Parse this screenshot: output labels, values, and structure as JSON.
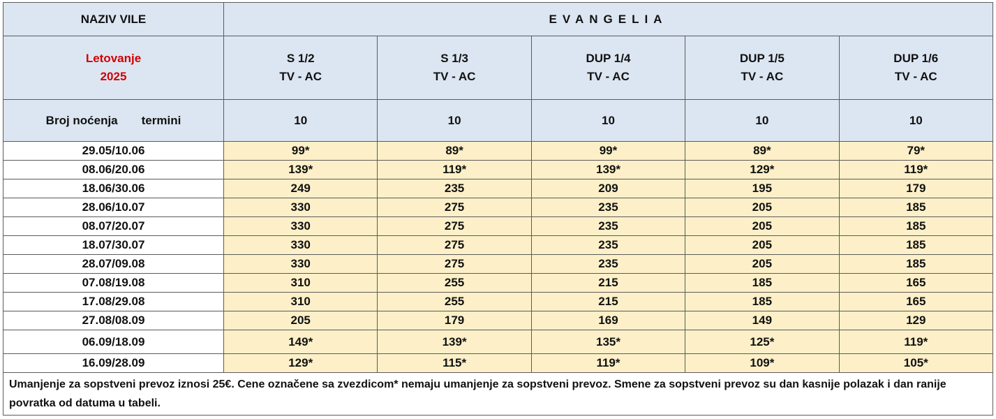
{
  "table": {
    "header": {
      "label": "NAZIV VILE",
      "villa": "EVANGELIA"
    },
    "season": [
      "Letovanje",
      "2025"
    ],
    "rooms": [
      {
        "name": "S 1/2",
        "features": "TV - AC"
      },
      {
        "name": "S 1/3",
        "features": "TV - AC"
      },
      {
        "name": "DUP 1/4",
        "features": "TV - AC"
      },
      {
        "name": "DUP 1/5",
        "features": "TV - AC"
      },
      {
        "name": "DUP 1/6",
        "features": "TV - AC"
      }
    ],
    "nights_label": "Broj noćenja",
    "dates_label": "termini",
    "nights": [
      "10",
      "10",
      "10",
      "10",
      "10"
    ],
    "rows": [
      {
        "date": "29.05/10.06",
        "prices": [
          "99*",
          "89*",
          "99*",
          "89*",
          "79*"
        ]
      },
      {
        "date": "08.06/20.06",
        "prices": [
          "139*",
          "119*",
          "139*",
          "129*",
          "119*"
        ]
      },
      {
        "date": "18.06/30.06",
        "prices": [
          "249",
          "235",
          "209",
          "195",
          "179"
        ]
      },
      {
        "date": "28.06/10.07",
        "prices": [
          "330",
          "275",
          "235",
          "205",
          "185"
        ]
      },
      {
        "date": "08.07/20.07",
        "prices": [
          "330",
          "275",
          "235",
          "205",
          "185"
        ]
      },
      {
        "date": "18.07/30.07",
        "prices": [
          "330",
          "275",
          "235",
          "205",
          "185"
        ]
      },
      {
        "date": "28.07/09.08",
        "prices": [
          "330",
          "275",
          "235",
          "205",
          "185"
        ]
      },
      {
        "date": "07.08/19.08",
        "prices": [
          "310",
          "255",
          "215",
          "185",
          "165"
        ]
      },
      {
        "date": "17.08/29.08",
        "prices": [
          "310",
          "255",
          "215",
          "185",
          "165"
        ]
      },
      {
        "date": "27.08/08.09",
        "prices": [
          "205",
          "179",
          "169",
          "149",
          "129"
        ]
      },
      {
        "date": "06.09/18.09",
        "prices": [
          "149*",
          "139*",
          "135*",
          "125*",
          "119*"
        ]
      },
      {
        "date": "16.09/28.09",
        "prices": [
          "129*",
          "115*",
          "119*",
          "109*",
          "105*"
        ]
      }
    ],
    "footer": "Umanjenje za sopstveni prevoz iznosi 25€. Cene označene sa zvezdicom* nemaju umanjenje za sopstveni prevoz. Smene za sopstveni prevoz su dan kasnije polazak  i dan ranije povratka od datuma u tabeli."
  }
}
